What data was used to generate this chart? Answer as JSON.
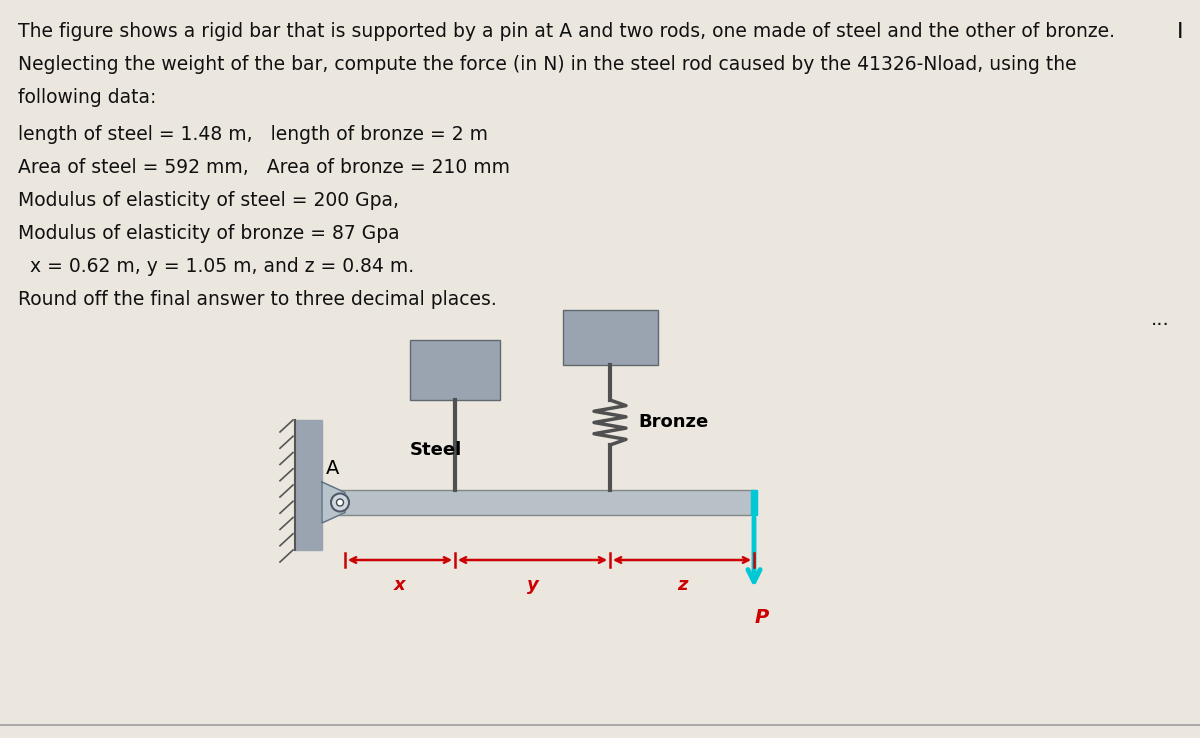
{
  "bg_color": "#ebe7df",
  "text_color": "#111111",
  "line1": "The figure shows a rigid bar that is supported by a pin at A and two rods, one made of steel and the other of bronze.",
  "line2": "Neglecting the weight of the bar, compute the force (in N) in the steel rod caused by the 41326-Nload, using the",
  "line3": "following data:",
  "line4": "length of steel = 1.48 m,   length of bronze = 2 m",
  "line5": "Area of steel = 592 mm,   Area of bronze = 210 mm",
  "line6": "Modulus of elasticity of steel = 200 Gpa,",
  "line7": "Modulus of elasticity of bronze = 87 Gpa",
  "line8": "  x = 0.62 m, y = 1.05 m, and z = 0.84 m.",
  "line9": "Round off the final answer to three decimal places.",
  "wall_color": "#9aa4b0",
  "bar_color": "#b8c0c8",
  "cap_color": "#9aa4b0",
  "rod_color": "#505050",
  "load_color": "#00c8d4",
  "dim_color": "#cc0000",
  "fig_width": 12.0,
  "fig_height": 7.38
}
